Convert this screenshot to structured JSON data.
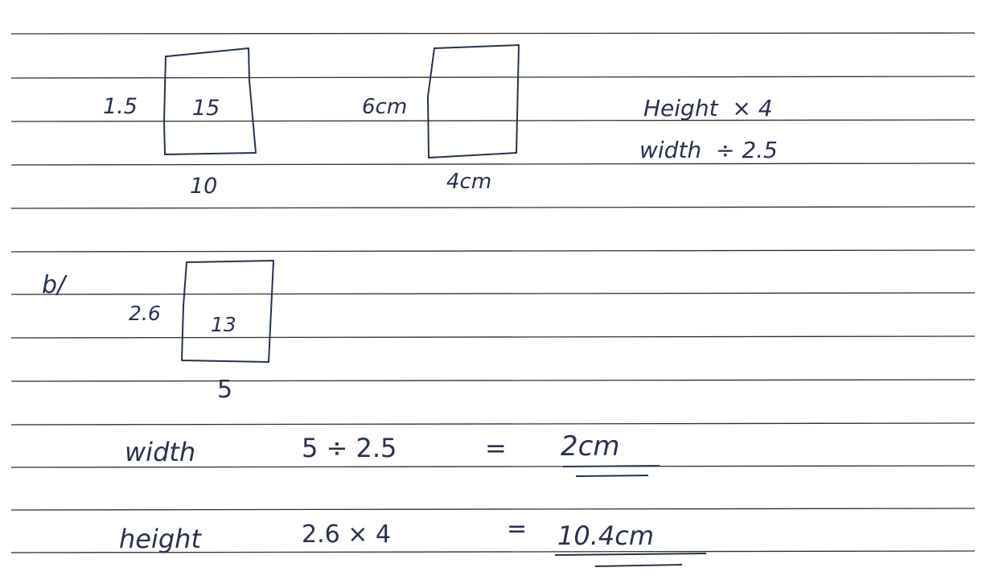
{
  "page": {
    "ruled_line_count": 13
  },
  "part_a": {
    "rect1": {
      "side_label": "1.5",
      "inner_label": "15",
      "bottom_label": "10"
    },
    "rect2": {
      "side_label": "6cm",
      "bottom_label": "4cm"
    },
    "notes": {
      "height_note": "Height  × 4",
      "width_note": "width  ÷ 2.5"
    }
  },
  "part_b": {
    "label": "b/",
    "rect": {
      "side_label": "2.6",
      "inner_label": "13",
      "bottom_label": "5"
    },
    "width_calc": {
      "word": "width",
      "expr": "5 ÷ 2.5",
      "equals": "=",
      "answer": "2cm"
    },
    "height_calc": {
      "word": "height",
      "expr": "2.6 × 4",
      "equals": "=",
      "answer": "10.4cm"
    }
  },
  "colors": {
    "ink": "#27324f",
    "rule": "#2f2f2f",
    "paper": "#ffffff"
  }
}
